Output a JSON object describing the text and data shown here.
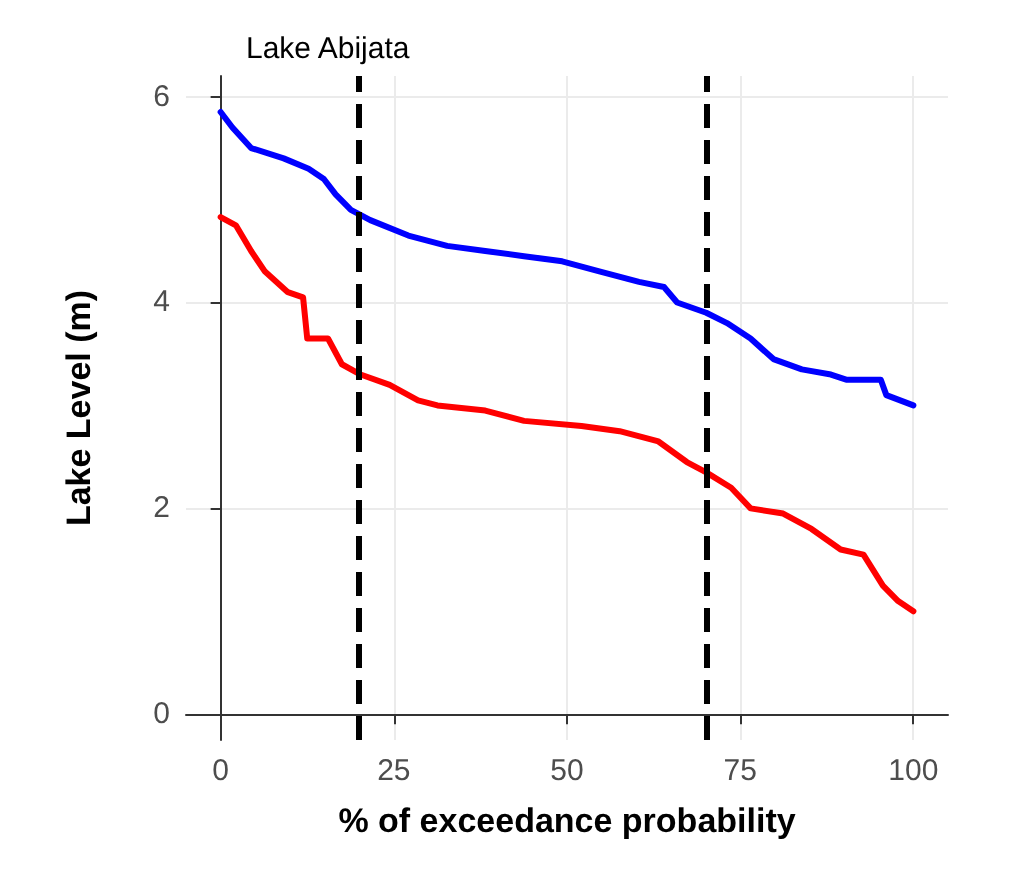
{
  "chart_data": {
    "type": "line",
    "title": "Lake Abijata",
    "xlabel": "% of exceedance probability",
    "ylabel": "Lake Level (m)",
    "series": [
      {
        "color": "#0000ff",
        "x": [
          0,
          1.7,
          4.4,
          9.1,
          12.7,
          14.9,
          16.6,
          18.8,
          21.6,
          27.1,
          32.7,
          38.2,
          43.8,
          49.3,
          54.8,
          60.4,
          64.0,
          65.9,
          70.1,
          73.1,
          76.5,
          79.8,
          83.9,
          88.1,
          90.3,
          95.3,
          96.1,
          100
        ],
        "values": [
          5.85,
          5.7,
          5.5,
          5.4,
          5.3,
          5.2,
          5.05,
          4.9,
          4.8,
          4.65,
          4.55,
          4.5,
          4.45,
          4.4,
          4.3,
          4.2,
          4.15,
          4.0,
          3.9,
          3.8,
          3.65,
          3.45,
          3.35,
          3.3,
          3.25,
          3.25,
          3.1,
          3.0
        ]
      },
      {
        "color": "#ff0000",
        "x": [
          0,
          2.2,
          4.4,
          6.4,
          9.7,
          11.9,
          12.5,
          15.5,
          17.5,
          20.2,
          24.4,
          28.5,
          31.3,
          38.2,
          43.8,
          52.1,
          57.6,
          63.2,
          67.3,
          70.1,
          73.7,
          76.5,
          81.2,
          85.3,
          89.5,
          92.8,
          95.6,
          97.8,
          100
        ],
        "values": [
          4.83,
          4.75,
          4.5,
          4.3,
          4.1,
          4.05,
          3.65,
          3.65,
          3.4,
          3.3,
          3.2,
          3.05,
          3.0,
          2.95,
          2.85,
          2.8,
          2.75,
          2.65,
          2.45,
          2.35,
          2.2,
          2.0,
          1.95,
          1.8,
          1.6,
          1.55,
          1.25,
          1.1,
          1.0
        ]
      }
    ],
    "xlim": [
      -5,
      105
    ],
    "xticks": [
      0,
      25,
      50,
      75,
      100
    ],
    "ylim": [
      -0.25,
      6.2
    ],
    "yticks": [
      0,
      2,
      4,
      6
    ],
    "ref_lines": [
      {
        "axis": "x",
        "value": 20,
        "color": "#000000",
        "line_style": "dashed"
      },
      {
        "axis": "x",
        "value": 70,
        "color": "#000000",
        "line_style": "dashed"
      }
    ],
    "grid": true,
    "marker": "none",
    "line_style": "solid"
  }
}
